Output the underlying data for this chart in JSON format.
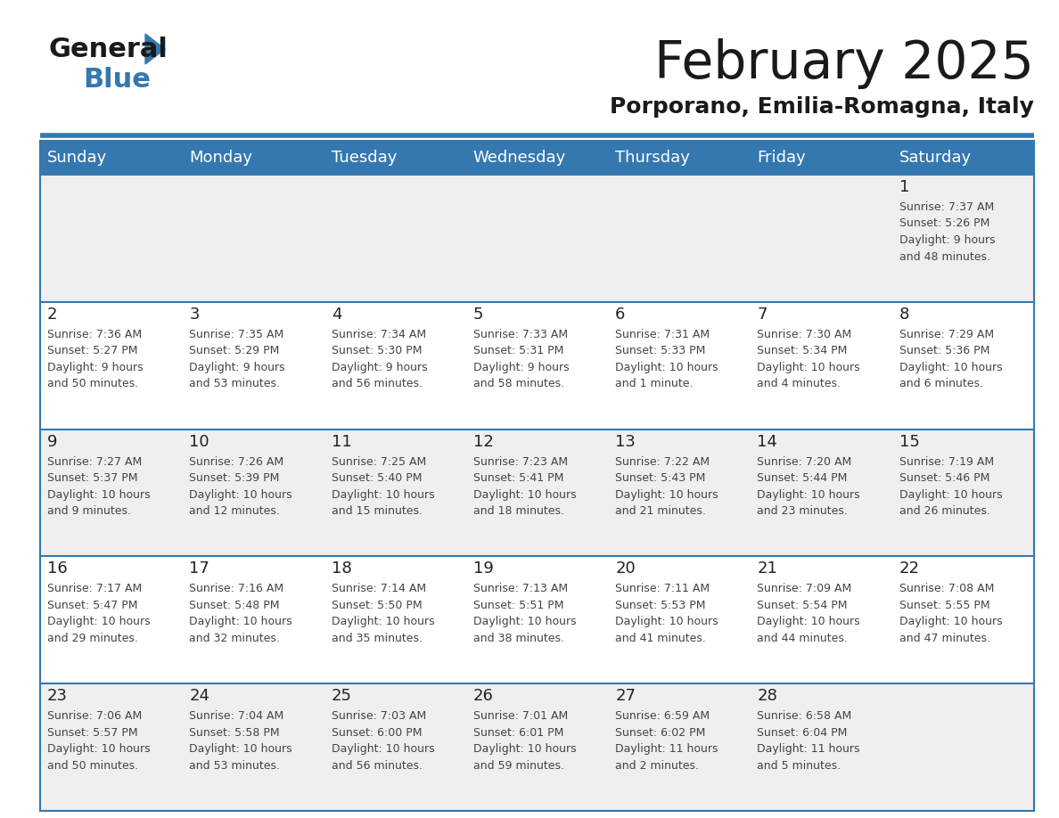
{
  "title": "February 2025",
  "subtitle": "Porporano, Emilia-Romagna, Italy",
  "days_of_week": [
    "Sunday",
    "Monday",
    "Tuesday",
    "Wednesday",
    "Thursday",
    "Friday",
    "Saturday"
  ],
  "header_bg": "#3578B0",
  "header_text": "#FFFFFF",
  "cell_bg_white": "#FFFFFF",
  "cell_bg_gray": "#EFEFEF",
  "border_color": "#3578B0",
  "day_number_color": "#222222",
  "cell_text_color": "#444444",
  "title_color": "#1a1a1a",
  "subtitle_color": "#1a1a1a",
  "logo_general_color": "#1a1a1a",
  "logo_blue_color": "#3578B0",
  "weeks": [
    [
      {
        "day": null,
        "info": null
      },
      {
        "day": null,
        "info": null
      },
      {
        "day": null,
        "info": null
      },
      {
        "day": null,
        "info": null
      },
      {
        "day": null,
        "info": null
      },
      {
        "day": null,
        "info": null
      },
      {
        "day": 1,
        "info": "Sunrise: 7:37 AM\nSunset: 5:26 PM\nDaylight: 9 hours\nand 48 minutes."
      }
    ],
    [
      {
        "day": 2,
        "info": "Sunrise: 7:36 AM\nSunset: 5:27 PM\nDaylight: 9 hours\nand 50 minutes."
      },
      {
        "day": 3,
        "info": "Sunrise: 7:35 AM\nSunset: 5:29 PM\nDaylight: 9 hours\nand 53 minutes."
      },
      {
        "day": 4,
        "info": "Sunrise: 7:34 AM\nSunset: 5:30 PM\nDaylight: 9 hours\nand 56 minutes."
      },
      {
        "day": 5,
        "info": "Sunrise: 7:33 AM\nSunset: 5:31 PM\nDaylight: 9 hours\nand 58 minutes."
      },
      {
        "day": 6,
        "info": "Sunrise: 7:31 AM\nSunset: 5:33 PM\nDaylight: 10 hours\nand 1 minute."
      },
      {
        "day": 7,
        "info": "Sunrise: 7:30 AM\nSunset: 5:34 PM\nDaylight: 10 hours\nand 4 minutes."
      },
      {
        "day": 8,
        "info": "Sunrise: 7:29 AM\nSunset: 5:36 PM\nDaylight: 10 hours\nand 6 minutes."
      }
    ],
    [
      {
        "day": 9,
        "info": "Sunrise: 7:27 AM\nSunset: 5:37 PM\nDaylight: 10 hours\nand 9 minutes."
      },
      {
        "day": 10,
        "info": "Sunrise: 7:26 AM\nSunset: 5:39 PM\nDaylight: 10 hours\nand 12 minutes."
      },
      {
        "day": 11,
        "info": "Sunrise: 7:25 AM\nSunset: 5:40 PM\nDaylight: 10 hours\nand 15 minutes."
      },
      {
        "day": 12,
        "info": "Sunrise: 7:23 AM\nSunset: 5:41 PM\nDaylight: 10 hours\nand 18 minutes."
      },
      {
        "day": 13,
        "info": "Sunrise: 7:22 AM\nSunset: 5:43 PM\nDaylight: 10 hours\nand 21 minutes."
      },
      {
        "day": 14,
        "info": "Sunrise: 7:20 AM\nSunset: 5:44 PM\nDaylight: 10 hours\nand 23 minutes."
      },
      {
        "day": 15,
        "info": "Sunrise: 7:19 AM\nSunset: 5:46 PM\nDaylight: 10 hours\nand 26 minutes."
      }
    ],
    [
      {
        "day": 16,
        "info": "Sunrise: 7:17 AM\nSunset: 5:47 PM\nDaylight: 10 hours\nand 29 minutes."
      },
      {
        "day": 17,
        "info": "Sunrise: 7:16 AM\nSunset: 5:48 PM\nDaylight: 10 hours\nand 32 minutes."
      },
      {
        "day": 18,
        "info": "Sunrise: 7:14 AM\nSunset: 5:50 PM\nDaylight: 10 hours\nand 35 minutes."
      },
      {
        "day": 19,
        "info": "Sunrise: 7:13 AM\nSunset: 5:51 PM\nDaylight: 10 hours\nand 38 minutes."
      },
      {
        "day": 20,
        "info": "Sunrise: 7:11 AM\nSunset: 5:53 PM\nDaylight: 10 hours\nand 41 minutes."
      },
      {
        "day": 21,
        "info": "Sunrise: 7:09 AM\nSunset: 5:54 PM\nDaylight: 10 hours\nand 44 minutes."
      },
      {
        "day": 22,
        "info": "Sunrise: 7:08 AM\nSunset: 5:55 PM\nDaylight: 10 hours\nand 47 minutes."
      }
    ],
    [
      {
        "day": 23,
        "info": "Sunrise: 7:06 AM\nSunset: 5:57 PM\nDaylight: 10 hours\nand 50 minutes."
      },
      {
        "day": 24,
        "info": "Sunrise: 7:04 AM\nSunset: 5:58 PM\nDaylight: 10 hours\nand 53 minutes."
      },
      {
        "day": 25,
        "info": "Sunrise: 7:03 AM\nSunset: 6:00 PM\nDaylight: 10 hours\nand 56 minutes."
      },
      {
        "day": 26,
        "info": "Sunrise: 7:01 AM\nSunset: 6:01 PM\nDaylight: 10 hours\nand 59 minutes."
      },
      {
        "day": 27,
        "info": "Sunrise: 6:59 AM\nSunset: 6:02 PM\nDaylight: 11 hours\nand 2 minutes."
      },
      {
        "day": 28,
        "info": "Sunrise: 6:58 AM\nSunset: 6:04 PM\nDaylight: 11 hours\nand 5 minutes."
      },
      {
        "day": null,
        "info": null
      }
    ]
  ]
}
